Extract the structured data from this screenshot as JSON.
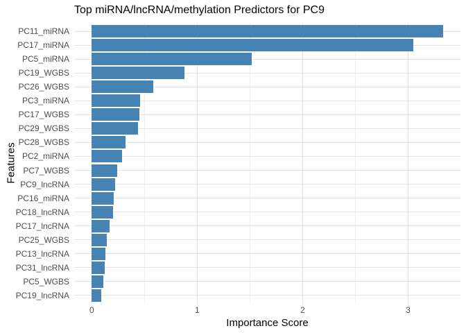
{
  "chart_data": {
    "type": "bar",
    "orientation": "horizontal",
    "title": "Top miRNA/lncRNA/methylation Predictors for PC9",
    "xlabel": "Importance Score",
    "ylabel": "Features",
    "categories": [
      "PC11_miRNA",
      "PC17_miRNA",
      "PC5_miRNA",
      "PC19_WGBS",
      "PC26_WGBS",
      "PC3_miRNA",
      "PC17_WGBS",
      "PC29_WGBS",
      "PC28_WGBS",
      "PC2_miRNA",
      "PC7_WGBS",
      "PC9_lncRNA",
      "PC16_miRNA",
      "PC18_lncRNA",
      "PC17_lncRNA",
      "PC25_WGBS",
      "PC13_lncRNA",
      "PC31_lncRNA",
      "PC5_WGBS",
      "PC19_lncRNA"
    ],
    "values": [
      3.33,
      3.05,
      1.52,
      0.88,
      0.58,
      0.46,
      0.45,
      0.44,
      0.32,
      0.29,
      0.24,
      0.22,
      0.21,
      0.2,
      0.17,
      0.14,
      0.13,
      0.12,
      0.11,
      0.09
    ],
    "x_ticks": [
      0,
      1,
      2,
      3
    ],
    "x_minor_ticks": [
      0.5,
      1.5,
      2.5,
      3.5
    ],
    "xlim": [
      -0.1665,
      3.4965
    ],
    "legend": "none",
    "grid": "vertical major+minor, horizontal major per category",
    "bar_color": "#4682B4",
    "major_grid_color": "#E3E3E3",
    "minor_grid_color": "#EFEFEF",
    "tick_label_color": "#4D4D4D",
    "background": "#FFFFFF"
  }
}
